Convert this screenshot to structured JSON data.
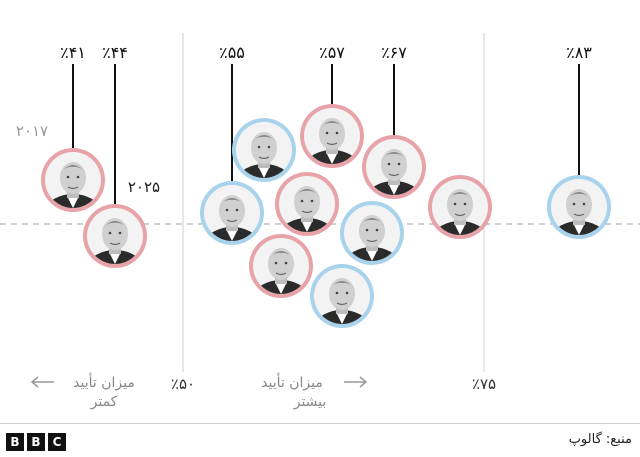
{
  "chart_data": {
    "type": "scatter",
    "title": "",
    "xlabel": "",
    "ylabel": "",
    "x_ticks": [
      {
        "value": 50,
        "label": "٪۵۰"
      },
      {
        "value": 75,
        "label": "٪۷۵"
      }
    ],
    "direction_labels": {
      "lower_line1": "میزان تأیید",
      "lower_line2": "کمتر",
      "higher_line1": "میزان تأیید",
      "higher_line2": "بیشتر"
    },
    "colors": {
      "republican": "#e8a3a8",
      "democrat": "#a9d3ec"
    },
    "points": [
      {
        "name": "Trump",
        "party": "republican",
        "value": 41,
        "label": "٪۴۱",
        "year_label": "۲۰۱۷"
      },
      {
        "name": "Trump",
        "party": "republican",
        "value": 44,
        "label": "٪۴۴",
        "year_label": "۲۰۲۵"
      },
      {
        "name": "Clinton",
        "party": "democrat",
        "value": 55,
        "label": "٪۵۵"
      },
      {
        "name": "G. W. Bush",
        "party": "republican",
        "value": 57,
        "label": "٪۵۷"
      },
      {
        "name": "Biden",
        "party": "democrat",
        "label": ""
      },
      {
        "name": "Nixon",
        "party": "republican",
        "label": ""
      },
      {
        "name": "G. H. W. Bush",
        "party": "republican",
        "label": ""
      },
      {
        "name": "Obama",
        "party": "democrat",
        "label": ""
      },
      {
        "name": "Carter",
        "party": "democrat",
        "label": ""
      },
      {
        "name": "Reagan",
        "party": "republican",
        "value": 67,
        "label": "٪۶۷"
      },
      {
        "name": "Eisenhower",
        "party": "republican",
        "label": ""
      },
      {
        "name": "Kennedy",
        "party": "democrat",
        "value": 83,
        "label": "٪۸۳"
      }
    ]
  },
  "footer": {
    "logo_letters": [
      "B",
      "B",
      "C"
    ],
    "source": "منبع: گالوپ"
  }
}
